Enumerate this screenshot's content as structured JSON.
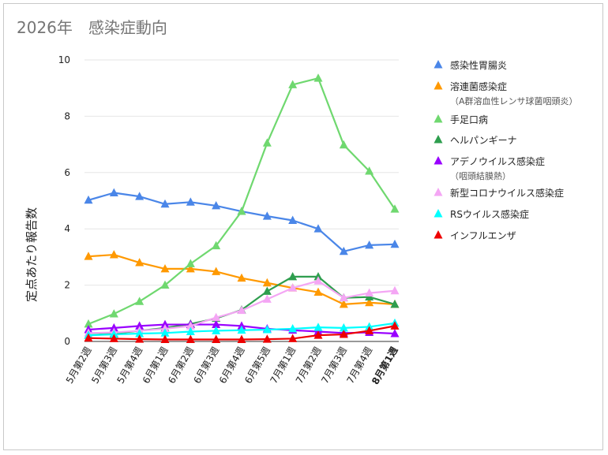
{
  "chart_data": {
    "type": "line",
    "title": "2026年　感染症動向",
    "ylabel": "定点あたり報告数",
    "xlabel": "",
    "ylim": [
      0,
      10
    ],
    "yticks": [
      0,
      2,
      4,
      6,
      8,
      10
    ],
    "grid": true,
    "legend_position": "right",
    "categories": [
      "5月第2週",
      "5月第3週",
      "5月第4週",
      "6月第1週",
      "6月第2週",
      "6月第3週",
      "6月第4週",
      "6月第5週",
      "7月第1週",
      "7月第2週",
      "7月第3週",
      "7月第4週",
      "8月第1週"
    ],
    "highlight_category": {
      "index": 12,
      "color": "#cc4444"
    },
    "series": [
      {
        "name": "感染性胃腸炎",
        "sub": "",
        "color": "#4a86e8",
        "values": [
          5.02,
          5.28,
          5.15,
          4.88,
          4.95,
          4.82,
          4.62,
          4.45,
          4.3,
          4.0,
          3.2,
          3.42,
          3.45
        ]
      },
      {
        "name": "溶連菌感染症",
        "sub": "（A群溶血性レンサ球菌咽頭炎）",
        "color": "#ff9900",
        "values": [
          3.02,
          3.08,
          2.8,
          2.58,
          2.58,
          2.48,
          2.25,
          2.08,
          1.9,
          1.75,
          1.32,
          1.38,
          1.32
        ]
      },
      {
        "name": "手足口病",
        "sub": "",
        "color": "#6fd86f",
        "values": [
          0.62,
          0.98,
          1.42,
          2.0,
          2.76,
          3.4,
          4.62,
          7.05,
          9.12,
          9.35,
          6.98,
          6.05,
          4.7
        ]
      },
      {
        "name": "ヘルパンギーナ",
        "sub": "",
        "color": "#2e9e4e",
        "values": [
          0.22,
          0.28,
          0.38,
          0.48,
          0.62,
          0.82,
          1.12,
          1.78,
          2.3,
          2.3,
          1.55,
          1.58,
          1.32
        ]
      },
      {
        "name": "アデノウイルス感染症",
        "sub": "（咽頭結膜熱）",
        "color": "#9900ff",
        "values": [
          0.42,
          0.48,
          0.55,
          0.6,
          0.6,
          0.6,
          0.55,
          0.45,
          0.4,
          0.35,
          0.3,
          0.32,
          0.28
        ]
      },
      {
        "name": "新型コロナウイルス感染症",
        "sub": "",
        "color": "#f4a6f4",
        "values": [
          0.3,
          0.32,
          0.38,
          0.45,
          0.55,
          0.85,
          1.1,
          1.5,
          1.9,
          2.15,
          1.55,
          1.72,
          1.8
        ]
      },
      {
        "name": "RSウイルス感染症",
        "sub": "",
        "color": "#00ffff",
        "values": [
          0.22,
          0.25,
          0.28,
          0.3,
          0.35,
          0.38,
          0.4,
          0.42,
          0.45,
          0.5,
          0.48,
          0.52,
          0.65
        ]
      },
      {
        "name": "インフルエンザ",
        "sub": "",
        "color": "#ee0000",
        "values": [
          0.12,
          0.1,
          0.08,
          0.07,
          0.07,
          0.07,
          0.07,
          0.08,
          0.1,
          0.22,
          0.25,
          0.38,
          0.55
        ]
      }
    ]
  }
}
